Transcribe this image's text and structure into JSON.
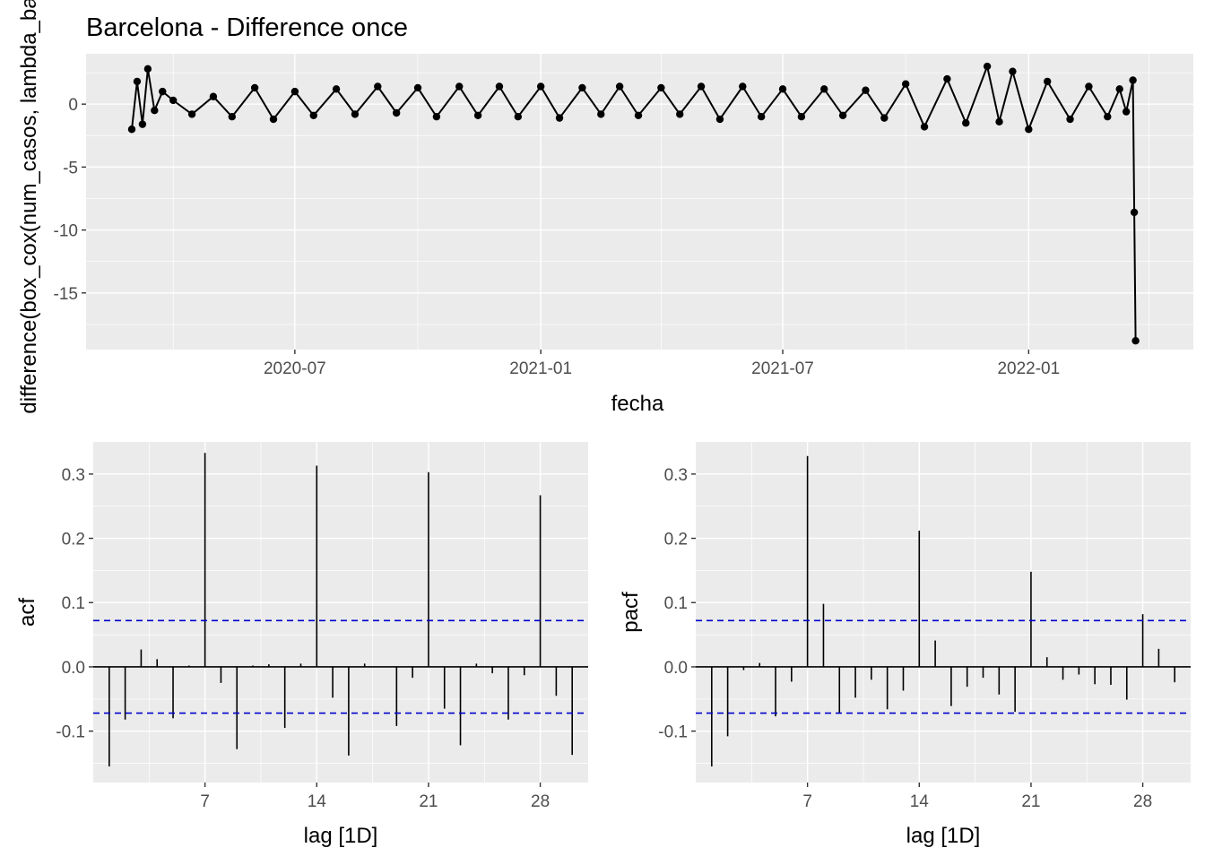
{
  "chart_data": [
    {
      "type": "line",
      "title": "Barcelona - Difference once",
      "xlabel": "fecha",
      "ylabel": "difference(box_cox(num_casos, lambda_bar",
      "x_ticks": [
        "2020-07",
        "2021-01",
        "2021-07",
        "2022-01"
      ],
      "x_range": [
        "2020-03-01",
        "2022-03-31"
      ],
      "y_ticks": [
        0,
        -5,
        -10,
        -15
      ],
      "ylim": [
        -19.5,
        4
      ],
      "markers": "points",
      "grid": true,
      "series": [
        {
          "x": [
            "2020-03-01",
            "2020-03-05",
            "2020-03-09",
            "2020-03-13",
            "2020-03-18",
            "2020-03-24",
            "2020-04-01",
            "2020-04-15",
            "2020-05-01",
            "2020-05-15",
            "2020-06-01",
            "2020-06-15",
            "2020-07-01",
            "2020-07-15",
            "2020-08-01",
            "2020-08-15",
            "2020-09-01",
            "2020-09-15",
            "2020-10-01",
            "2020-10-15",
            "2020-11-01",
            "2020-11-15",
            "2020-12-01",
            "2020-12-15",
            "2021-01-01",
            "2021-01-15",
            "2021-02-01",
            "2021-02-15",
            "2021-03-01",
            "2021-03-15",
            "2021-04-01",
            "2021-04-15",
            "2021-05-01",
            "2021-05-15",
            "2021-06-01",
            "2021-06-15",
            "2021-07-01",
            "2021-07-15",
            "2021-08-01",
            "2021-08-15",
            "2021-09-01",
            "2021-09-15",
            "2021-10-01",
            "2021-10-15",
            "2021-11-01",
            "2021-11-15",
            "2021-12-01",
            "2021-12-10",
            "2021-12-20",
            "2022-01-01",
            "2022-01-15",
            "2022-02-01",
            "2022-02-15",
            "2022-03-01",
            "2022-03-10",
            "2022-03-15",
            "2022-03-20",
            "2022-03-21",
            "2022-03-22"
          ],
          "values": [
            -2.0,
            1.8,
            -1.6,
            2.8,
            -0.5,
            1.0,
            0.3,
            -0.8,
            0.6,
            -1.0,
            1.3,
            -1.2,
            1.0,
            -0.9,
            1.2,
            -0.8,
            1.4,
            -0.7,
            1.3,
            -1.0,
            1.4,
            -0.9,
            1.4,
            -1.0,
            1.4,
            -1.1,
            1.3,
            -0.8,
            1.4,
            -0.9,
            1.3,
            -0.8,
            1.4,
            -1.2,
            1.4,
            -1.0,
            1.2,
            -1.0,
            1.2,
            -0.9,
            1.1,
            -1.1,
            1.6,
            -1.8,
            2.0,
            -1.5,
            3.0,
            -1.4,
            2.6,
            -2.0,
            1.8,
            -1.2,
            1.4,
            -1.0,
            1.2,
            -0.6,
            1.9,
            -8.6,
            -18.8
          ]
        }
      ]
    },
    {
      "type": "bar",
      "xlabel": "lag [1D]",
      "ylabel": "acf",
      "x_ticks": [
        7,
        14,
        21,
        28
      ],
      "y_ticks": [
        0.3,
        0.2,
        0.1,
        0.0,
        -0.1
      ],
      "ylim": [
        -0.18,
        0.35
      ],
      "xlim": [
        0,
        31
      ],
      "ci_band": [
        0.072,
        -0.072
      ],
      "ci_color": "#0000cc",
      "lags": [
        1,
        2,
        3,
        4,
        5,
        6,
        7,
        8,
        9,
        10,
        11,
        12,
        13,
        14,
        15,
        16,
        17,
        18,
        19,
        20,
        21,
        22,
        23,
        24,
        25,
        26,
        27,
        28,
        29,
        30
      ],
      "values": [
        -0.155,
        -0.082,
        0.027,
        0.012,
        -0.08,
        0.002,
        0.333,
        -0.025,
        -0.128,
        0.002,
        0.004,
        -0.095,
        0.005,
        0.313,
        -0.048,
        -0.138,
        0.005,
        0.0,
        -0.092,
        -0.017,
        0.303,
        -0.065,
        -0.122,
        0.005,
        -0.01,
        -0.082,
        -0.013,
        0.267,
        -0.045,
        -0.137
      ]
    },
    {
      "type": "bar",
      "xlabel": "lag [1D]",
      "ylabel": "pacf",
      "x_ticks": [
        7,
        14,
        21,
        28
      ],
      "y_ticks": [
        0.3,
        0.2,
        0.1,
        0.0,
        -0.1
      ],
      "ylim": [
        -0.18,
        0.35
      ],
      "xlim": [
        0,
        31
      ],
      "ci_band": [
        0.072,
        -0.072
      ],
      "ci_color": "#0000cc",
      "lags": [
        1,
        2,
        3,
        4,
        5,
        6,
        7,
        8,
        9,
        10,
        11,
        12,
        13,
        14,
        15,
        16,
        17,
        18,
        19,
        20,
        21,
        22,
        23,
        24,
        25,
        26,
        27,
        28,
        29,
        30
      ],
      "values": [
        -0.155,
        -0.108,
        -0.005,
        0.006,
        -0.077,
        -0.023,
        0.328,
        0.098,
        -0.072,
        -0.048,
        -0.02,
        -0.066,
        -0.037,
        0.212,
        0.041,
        -0.061,
        -0.031,
        -0.017,
        -0.043,
        -0.07,
        0.148,
        0.015,
        -0.02,
        -0.012,
        -0.027,
        -0.028,
        -0.051,
        0.082,
        0.028,
        -0.024
      ]
    }
  ]
}
